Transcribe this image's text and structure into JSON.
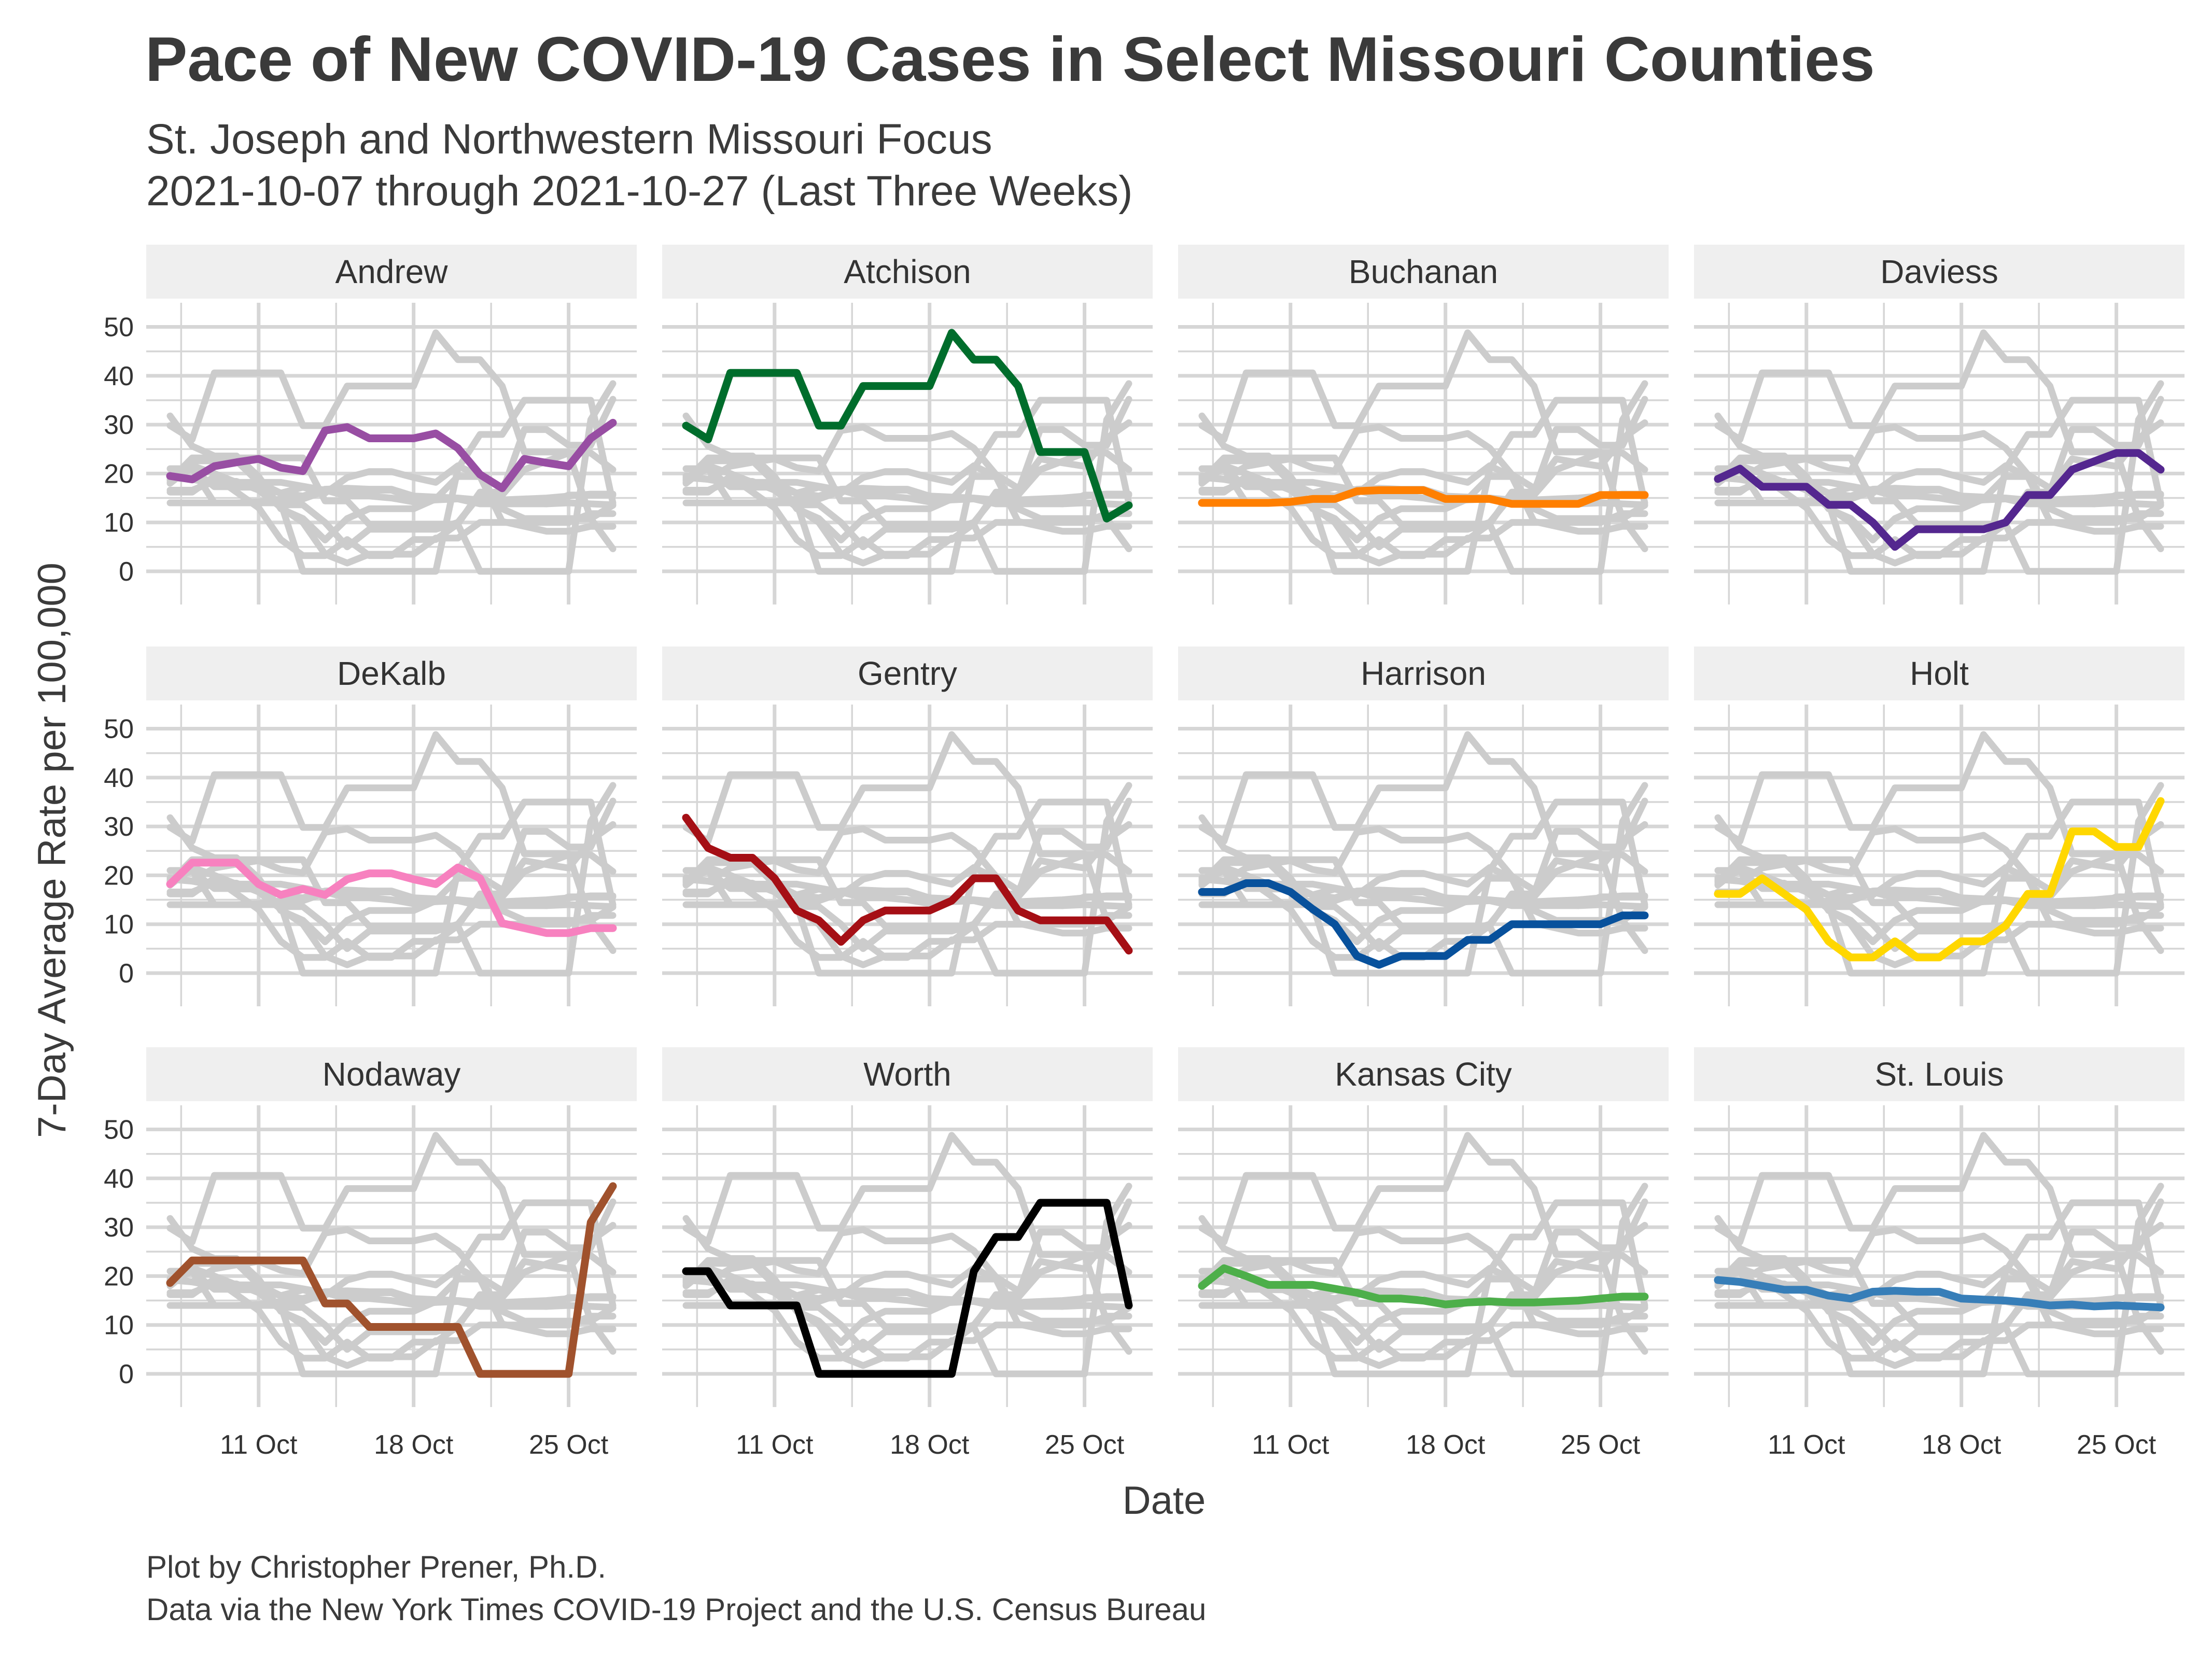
{
  "title": "Pace of New COVID-19 Cases in Select Missouri Counties",
  "subtitle_line1": "St. Joseph and Northwestern Missouri Focus",
  "subtitle_line2": "2021-10-07 through 2021-10-27 (Last Three Weeks)",
  "caption_line1": "Plot by Christopher Prener, Ph.D.",
  "caption_line2": "Data via the New York Times COVID-19 Project and the U.S. Census Bureau",
  "colors": {
    "background_series": "#cccccc",
    "strip": "#efefef",
    "grid": "#d6d6d6"
  },
  "chart_data": {
    "type": "line",
    "facet": "small-multiples",
    "xlabel": "Date",
    "ylabel": "7-Day Average Rate per 100,000",
    "ylim": [
      0,
      50
    ],
    "y_ticks": [
      0,
      10,
      20,
      30,
      40,
      50
    ],
    "x": [
      "2021-10-07",
      "2021-10-08",
      "2021-10-09",
      "2021-10-10",
      "2021-10-11",
      "2021-10-12",
      "2021-10-13",
      "2021-10-14",
      "2021-10-15",
      "2021-10-16",
      "2021-10-17",
      "2021-10-18",
      "2021-10-19",
      "2021-10-20",
      "2021-10-21",
      "2021-10-22",
      "2021-10-23",
      "2021-10-24",
      "2021-10-25",
      "2021-10-26",
      "2021-10-27"
    ],
    "x_ticks": [
      {
        "date": "2021-10-11",
        "label": "11 Oct"
      },
      {
        "date": "2021-10-18",
        "label": "18 Oct"
      },
      {
        "date": "2021-10-25",
        "label": "25 Oct"
      }
    ],
    "series": [
      {
        "name": "Andrew",
        "color": "#984ea3",
        "values": [
          19.5,
          18.8,
          21.5,
          22.3,
          23.0,
          21.2,
          20.5,
          28.8,
          29.5,
          27.2,
          27.2,
          27.2,
          28.2,
          25.2,
          19.8,
          17.0,
          23.0,
          22.2,
          21.5,
          27.2,
          30.4
        ]
      },
      {
        "name": "Atchison",
        "color": "#006d2c",
        "values": [
          29.8,
          27.0,
          40.6,
          40.6,
          40.6,
          40.6,
          29.8,
          29.8,
          37.9,
          37.9,
          37.9,
          37.9,
          48.8,
          43.3,
          43.3,
          37.9,
          24.4,
          24.4,
          24.4,
          10.8,
          13.5
        ]
      },
      {
        "name": "Buchanan",
        "color": "#ff7f00",
        "values": [
          14.0,
          14.0,
          14.0,
          14.0,
          14.2,
          14.8,
          14.8,
          16.4,
          16.6,
          16.6,
          16.6,
          14.8,
          14.8,
          14.8,
          13.8,
          13.8,
          13.8,
          13.8,
          15.6,
          15.6,
          15.6
        ]
      },
      {
        "name": "Daviess",
        "color": "#54278f",
        "values": [
          18.9,
          21.0,
          17.3,
          17.3,
          17.3,
          13.6,
          13.6,
          10.0,
          5.0,
          8.6,
          8.6,
          8.6,
          8.6,
          10.0,
          15.6,
          15.6,
          20.8,
          22.5,
          24.2,
          24.2,
          20.8
        ]
      },
      {
        "name": "DeKalb",
        "color": "#f781bf",
        "values": [
          18.2,
          22.6,
          22.6,
          22.6,
          18.2,
          16.0,
          17.2,
          16.0,
          19.2,
          20.4,
          20.4,
          19.2,
          18.2,
          21.6,
          19.4,
          10.2,
          9.2,
          8.2,
          8.2,
          9.2,
          9.2
        ]
      },
      {
        "name": "Gentry",
        "color": "#a50f15",
        "values": [
          31.8,
          25.6,
          23.6,
          23.6,
          19.4,
          12.8,
          10.8,
          6.4,
          10.8,
          12.8,
          12.8,
          12.8,
          14.8,
          19.4,
          19.4,
          12.8,
          10.8,
          10.8,
          10.8,
          10.8,
          4.6
        ]
      },
      {
        "name": "Harrison",
        "color": "#08519c",
        "values": [
          16.6,
          16.6,
          18.4,
          18.4,
          16.6,
          13.1,
          10.0,
          3.5,
          1.7,
          3.5,
          3.5,
          3.5,
          6.8,
          6.8,
          10.0,
          10.0,
          10.0,
          10.0,
          10.0,
          11.8,
          11.8
        ]
      },
      {
        "name": "Holt",
        "color": "#ffd700",
        "values": [
          16.2,
          16.2,
          19.4,
          16.2,
          13.0,
          6.5,
          3.2,
          3.2,
          6.5,
          3.2,
          3.2,
          6.5,
          6.5,
          9.7,
          16.2,
          16.2,
          29.0,
          29.0,
          25.8,
          25.8,
          35.2
        ]
      },
      {
        "name": "Nodaway",
        "color": "#a0522d",
        "values": [
          18.6,
          23.2,
          23.2,
          23.2,
          23.2,
          23.2,
          23.2,
          14.4,
          14.4,
          9.6,
          9.6,
          9.6,
          9.6,
          9.6,
          0,
          0,
          0,
          0,
          0,
          31.0,
          38.4
        ]
      },
      {
        "name": "Worth",
        "color": "#000000",
        "values": [
          21.0,
          21.0,
          14.0,
          14.0,
          14.0,
          14.0,
          0,
          0,
          0,
          0,
          0,
          0,
          0,
          21.0,
          28.0,
          28.0,
          35.0,
          35.0,
          35.0,
          35.0,
          14.0
        ]
      },
      {
        "name": "Kansas City",
        "color": "#4daf4a",
        "values": [
          18.0,
          21.6,
          20.0,
          18.2,
          18.2,
          18.2,
          17.4,
          16.6,
          15.4,
          15.4,
          15.0,
          14.2,
          14.6,
          14.8,
          14.6,
          14.6,
          14.8,
          15.0,
          15.4,
          15.8,
          15.8
        ]
      },
      {
        "name": "St. Louis",
        "color": "#377eb8",
        "values": [
          19.2,
          18.8,
          18.0,
          17.2,
          17.2,
          16.0,
          15.4,
          16.8,
          17.0,
          16.8,
          16.8,
          15.4,
          15.2,
          15.0,
          14.6,
          14.0,
          14.2,
          13.8,
          14.0,
          13.8,
          13.6
        ]
      }
    ]
  }
}
